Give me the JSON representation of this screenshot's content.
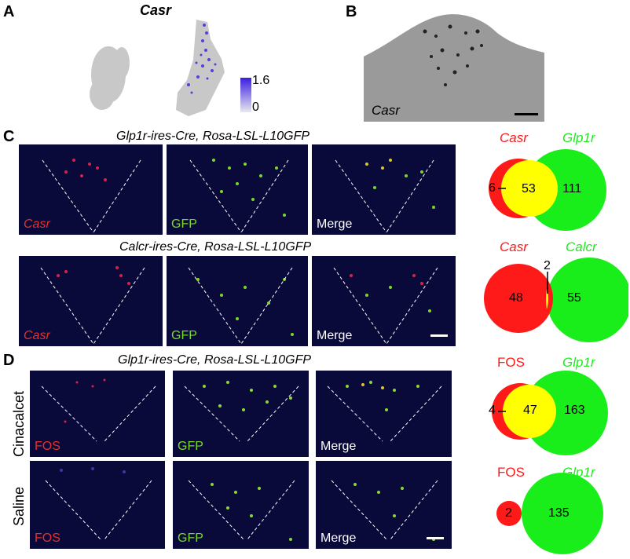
{
  "panels": {
    "a": {
      "label": "A",
      "gene": "Casr",
      "colorbar_max": "1.6",
      "colorbar_min": "0"
    },
    "b": {
      "label": "B",
      "gene": "Casr"
    },
    "c": {
      "label": "C",
      "row1_title": "Glp1r-ires-Cre, Rosa-LSL-L10GFP",
      "row2_title": "Calcr-ires-Cre, Rosa-LSL-L10GFP",
      "row1_channels": [
        "Casr",
        "GFP",
        "Merge"
      ],
      "row2_channels": [
        "Casr",
        "GFP",
        "Merge"
      ]
    },
    "d": {
      "label": "D",
      "title": "Glp1r-ires-Cre, Rosa-LSL-L10GFP",
      "rows": [
        "Cinacalcet",
        "Saline"
      ],
      "channels": [
        "FOS",
        "GFP",
        "Merge"
      ]
    }
  },
  "venns": [
    {
      "left": "Casr",
      "right": "Glp1r",
      "only_left": "6",
      "overlap": "53",
      "only_right": "111"
    },
    {
      "left": "Casr",
      "right": "Calcr",
      "only_left": "48",
      "overlap": "2",
      "only_right": "55"
    },
    {
      "left": "FOS",
      "right": "Glp1r",
      "only_left": "4",
      "overlap": "47",
      "only_right": "163"
    },
    {
      "left": "FOS",
      "right": "Glp1r",
      "only_left": "2",
      "only_right": "135"
    }
  ],
  "colors": {
    "red": "#ff1a1a",
    "green": "#1aee1a",
    "yellow": "#ffff00",
    "purple": "#4b2bd6"
  }
}
